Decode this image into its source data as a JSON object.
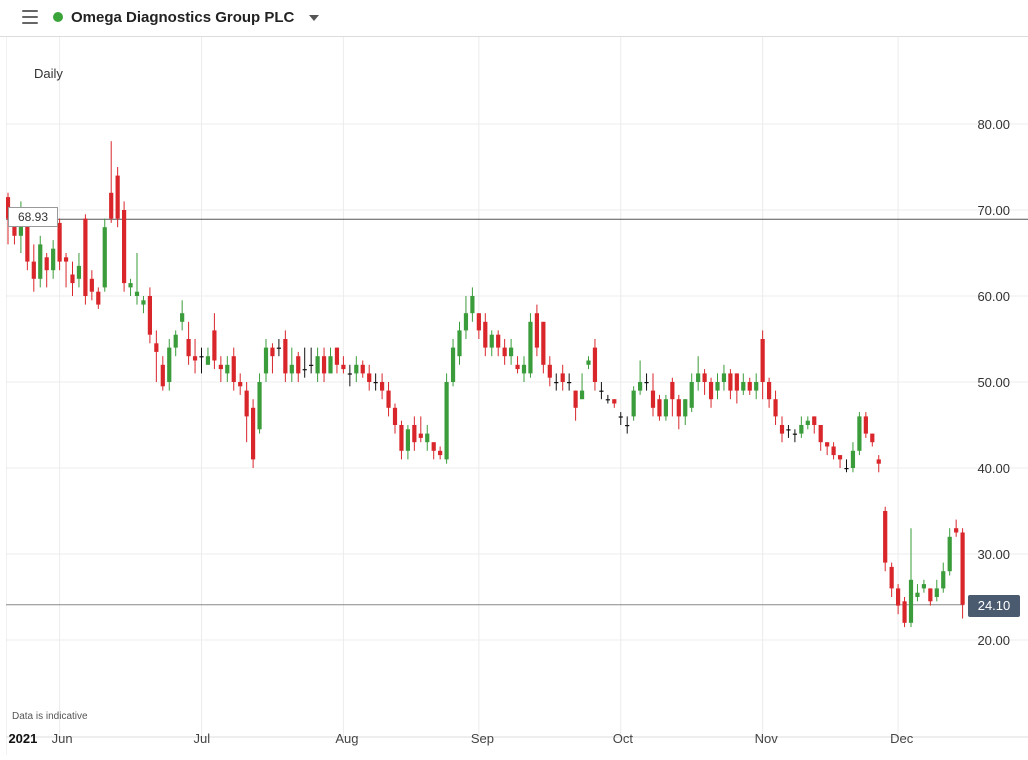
{
  "header": {
    "title": "Omega Diagnostics Group PLC",
    "status_color": "#3aa33a"
  },
  "chart_data": {
    "type": "candlestick",
    "timeframe": "Daily",
    "disclaimer": "Data is indicative",
    "ylim": [
      12,
      86
    ],
    "y_ticks": [
      20,
      30,
      40,
      50,
      60,
      70,
      80
    ],
    "y_tick_labels": [
      "20.00",
      "30.00",
      "40.00",
      "50.00",
      "60.00",
      "70.00",
      "80.00"
    ],
    "x_labels": [
      {
        "label": "2021",
        "t": 1,
        "bold": true
      },
      {
        "label": "Jun",
        "t": 8
      },
      {
        "label": "Jul",
        "t": 30
      },
      {
        "label": "Aug",
        "t": 52
      },
      {
        "label": "Sep",
        "t": 73
      },
      {
        "label": "Oct",
        "t": 95
      },
      {
        "label": "Nov",
        "t": 117
      },
      {
        "label": "Dec",
        "t": 138
      }
    ],
    "x_grid": [
      8,
      30,
      52,
      73,
      95,
      117,
      138
    ],
    "crosshair_price": 68.93,
    "crosshair_label": "68.93",
    "last_price": 24.1,
    "last_label": "24.10",
    "colors": {
      "up": "#3a9c3a",
      "down": "#d9262b",
      "flat": "#111111"
    },
    "candles": [
      [
        71.5,
        69,
        66,
        72
      ],
      [
        68.5,
        67,
        66,
        70
      ],
      [
        67,
        68.5,
        65,
        71
      ],
      [
        69,
        64,
        63,
        69.5
      ],
      [
        64,
        62,
        60.5,
        66
      ],
      [
        62,
        66,
        61,
        67
      ],
      [
        64.5,
        63,
        61,
        65
      ],
      [
        63,
        65.5,
        62,
        66.5
      ],
      [
        68.5,
        64,
        63,
        69
      ],
      [
        64.5,
        64,
        61,
        65
      ],
      [
        62.5,
        61.5,
        60,
        64
      ],
      [
        62,
        63.5,
        61,
        65
      ],
      [
        69,
        60,
        59,
        69.5
      ],
      [
        62,
        60.5,
        59.5,
        63
      ],
      [
        60.5,
        59,
        58.5,
        61
      ],
      [
        61,
        68,
        60.5,
        69
      ],
      [
        72,
        69,
        68.5,
        78
      ],
      [
        74,
        69,
        68,
        75
      ],
      [
        70,
        61.5,
        60.5,
        71
      ],
      [
        61,
        61.5,
        60,
        62
      ],
      [
        60,
        60.5,
        59,
        65
      ],
      [
        59,
        59.5,
        58,
        60
      ],
      [
        60,
        55.5,
        54.5,
        61
      ],
      [
        54.5,
        53.5,
        50,
        56
      ],
      [
        52,
        49.5,
        49,
        53
      ],
      [
        50,
        54,
        49,
        55
      ],
      [
        54,
        55.5,
        53,
        56
      ],
      [
        57,
        58,
        56,
        59.5
      ],
      [
        55,
        53,
        52,
        57
      ],
      [
        53,
        52.5,
        51,
        55
      ],
      [
        53,
        53,
        51,
        54
      ],
      [
        52,
        53,
        52,
        54
      ],
      [
        56,
        52.5,
        51.5,
        58
      ],
      [
        52,
        51.5,
        50,
        53
      ],
      [
        51,
        52,
        50,
        53
      ],
      [
        53,
        50,
        49,
        54
      ],
      [
        50,
        49.5,
        48.5,
        51
      ],
      [
        49,
        46,
        43,
        50
      ],
      [
        47,
        41,
        40,
        48
      ],
      [
        44.5,
        50,
        44,
        51
      ],
      [
        51,
        54,
        50,
        55
      ],
      [
        54,
        53,
        51,
        54.5
      ],
      [
        54,
        54,
        53,
        55
      ],
      [
        55,
        51,
        50,
        56
      ],
      [
        51,
        52,
        50,
        54
      ],
      [
        53,
        51,
        50,
        53.5
      ],
      [
        51.5,
        51.5,
        50.5,
        54
      ],
      [
        52,
        52,
        51,
        54
      ],
      [
        51,
        53,
        50,
        54
      ],
      [
        53,
        51,
        50,
        54
      ],
      [
        51,
        53,
        51,
        54
      ],
      [
        54,
        52,
        51,
        54
      ],
      [
        52,
        51.5,
        51,
        53
      ],
      [
        51,
        51,
        49.5,
        52
      ],
      [
        51,
        52,
        50,
        53
      ],
      [
        52,
        51,
        50.5,
        52.5
      ],
      [
        51,
        50,
        49,
        52
      ],
      [
        50,
        50,
        49,
        51
      ],
      [
        50,
        49,
        48,
        51
      ],
      [
        49,
        47,
        46,
        50
      ],
      [
        47,
        45,
        44,
        47.5
      ],
      [
        45,
        42,
        41,
        45.5
      ],
      [
        42,
        44.5,
        41,
        45
      ],
      [
        45,
        43,
        42,
        46
      ],
      [
        44,
        43.5,
        43,
        46
      ],
      [
        43,
        44,
        42,
        45
      ],
      [
        43,
        42,
        41,
        43
      ],
      [
        42,
        41.5,
        41,
        42.5
      ],
      [
        41,
        50,
        40.5,
        51
      ],
      [
        50,
        54,
        49.5,
        55
      ],
      [
        53,
        56,
        52,
        57
      ],
      [
        56,
        58,
        55,
        60
      ],
      [
        58,
        60,
        57,
        61
      ],
      [
        58,
        56,
        55,
        58
      ],
      [
        57,
        54,
        53,
        58
      ],
      [
        54,
        55.5,
        53,
        56
      ],
      [
        55.5,
        54,
        53,
        56
      ],
      [
        54,
        53,
        52,
        55
      ],
      [
        53,
        54,
        52,
        55
      ],
      [
        52,
        51.5,
        51,
        53
      ],
      [
        51,
        52,
        50,
        53
      ],
      [
        51,
        57,
        50.5,
        58
      ],
      [
        58,
        54,
        53,
        59
      ],
      [
        57,
        52,
        51,
        57
      ],
      [
        52,
        50.5,
        49.5,
        53
      ],
      [
        50,
        50,
        49,
        51
      ],
      [
        51,
        50,
        49,
        52
      ],
      [
        50,
        50,
        49,
        51
      ],
      [
        49,
        47,
        45.5,
        49
      ],
      [
        48,
        49,
        48,
        51
      ],
      [
        52,
        52.5,
        51.5,
        53
      ],
      [
        54,
        50,
        49,
        55
      ],
      [
        49,
        49,
        48,
        50
      ],
      [
        48,
        48,
        47.5,
        48.5
      ],
      [
        48,
        47.5,
        47,
        48
      ],
      [
        46,
        46,
        45,
        46.5
      ],
      [
        45,
        45,
        44,
        46
      ],
      [
        46,
        49,
        45.5,
        49.5
      ],
      [
        49,
        50,
        48.5,
        52.5
      ],
      [
        50,
        50,
        49,
        51
      ],
      [
        49,
        47,
        46,
        51
      ],
      [
        48,
        46,
        45.5,
        48.5
      ],
      [
        46,
        48,
        45.5,
        48.5
      ],
      [
        50,
        48,
        46,
        50.5
      ],
      [
        48,
        46,
        44.5,
        48.5
      ],
      [
        46,
        48,
        45,
        48
      ],
      [
        47,
        50,
        46.5,
        51
      ],
      [
        50,
        51,
        49,
        53
      ],
      [
        51,
        50,
        48.5,
        51.5
      ],
      [
        50,
        48,
        47,
        50.5
      ],
      [
        49,
        50,
        48,
        51
      ],
      [
        50,
        51,
        49,
        52
      ],
      [
        51,
        49,
        48,
        51.5
      ],
      [
        51,
        49,
        47.5,
        51
      ],
      [
        49,
        50,
        48.5,
        51
      ],
      [
        50,
        49,
        48.5,
        50.5
      ],
      [
        49,
        50,
        48,
        51
      ],
      [
        55,
        50,
        48,
        56
      ],
      [
        50,
        48,
        47,
        50.5
      ],
      [
        48,
        46,
        45,
        49
      ],
      [
        45,
        44,
        43,
        46
      ],
      [
        44.5,
        44.5,
        43.5,
        45
      ],
      [
        44,
        44,
        43,
        44.5
      ],
      [
        44,
        45,
        43.5,
        46
      ],
      [
        45,
        45.5,
        44.5,
        46
      ],
      [
        46,
        45,
        44,
        46
      ],
      [
        45,
        43,
        42,
        45
      ],
      [
        43,
        42.5,
        41.5,
        43
      ],
      [
        42.5,
        41.5,
        41,
        43
      ],
      [
        41.5,
        41,
        40,
        41.5
      ],
      [
        40,
        40,
        39.5,
        41
      ],
      [
        40,
        42,
        39.5,
        43
      ],
      [
        42,
        46,
        41.5,
        46.5
      ],
      [
        46,
        44,
        43.5,
        46.5
      ],
      [
        44,
        43,
        42.5,
        44
      ],
      [
        41,
        40.5,
        39.5,
        41.5
      ],
      [
        35,
        29,
        28,
        35.5
      ],
      [
        28.5,
        26,
        25,
        29
      ],
      [
        26,
        24,
        23,
        26.5
      ],
      [
        24.5,
        22,
        21.5,
        25
      ],
      [
        22,
        27,
        21.5,
        33
      ],
      [
        25,
        25.5,
        24.5,
        26.5
      ],
      [
        26,
        26.5,
        25.5,
        27
      ],
      [
        26,
        24.5,
        24,
        26
      ],
      [
        25,
        26,
        24.5,
        27
      ],
      [
        26,
        28,
        25.5,
        29
      ],
      [
        28,
        32,
        27.5,
        33
      ],
      [
        33,
        32.5,
        32,
        34
      ],
      [
        32.5,
        24.1,
        22.5,
        33
      ]
    ]
  }
}
